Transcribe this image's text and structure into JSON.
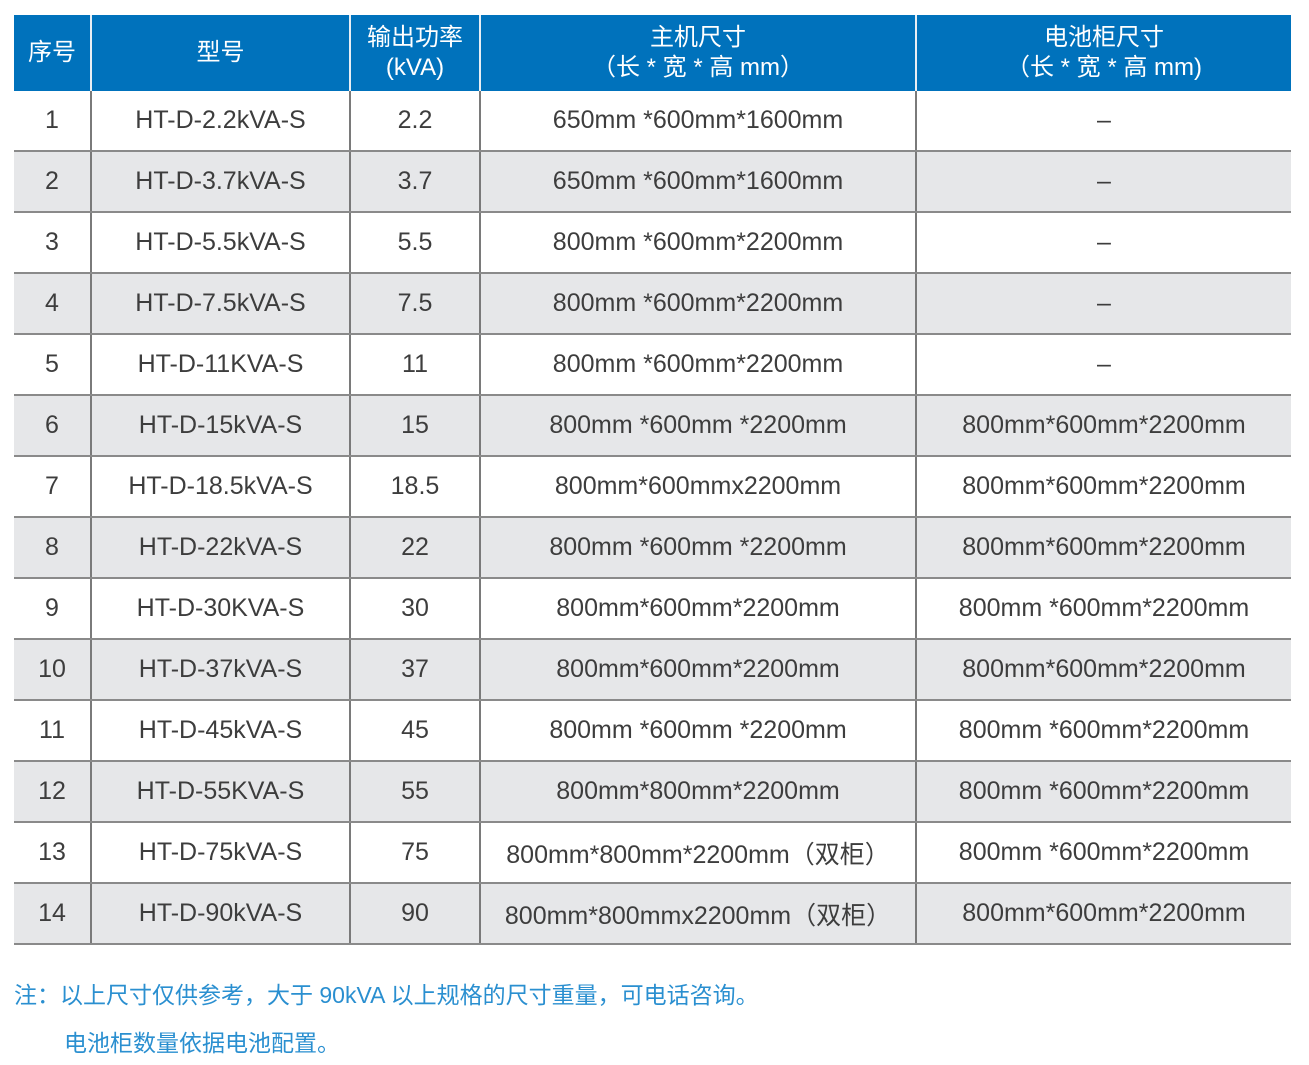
{
  "colors": {
    "header_bg": "#0072bc",
    "alt_row": "#e6e7e9",
    "note": "#2a8fd0"
  },
  "headers": [
    {
      "line1": "序号",
      "line2": ""
    },
    {
      "line1": "型号",
      "line2": ""
    },
    {
      "line1": "输出功率",
      "line2": "(kVA)"
    },
    {
      "line1": "主机尺寸",
      "line2": "（长 * 宽 * 高 mm）"
    },
    {
      "line1": "电池柜尺寸",
      "line2": "（长 * 宽 * 高 mm)"
    }
  ],
  "rows": [
    [
      "1",
      "HT-D-2.2kVA-S",
      "2.2",
      "650mm *600mm*1600mm",
      "–"
    ],
    [
      "2",
      "HT-D-3.7kVA-S",
      "3.7",
      "650mm *600mm*1600mm",
      "–"
    ],
    [
      "3",
      "HT-D-5.5kVA-S",
      "5.5",
      "800mm *600mm*2200mm",
      "–"
    ],
    [
      "4",
      "HT-D-7.5kVA-S",
      "7.5",
      "800mm *600mm*2200mm",
      "–"
    ],
    [
      "5",
      "HT-D-11KVA-S",
      "11",
      "800mm *600mm*2200mm",
      "–"
    ],
    [
      "6",
      "HT-D-15kVA-S",
      "15",
      "800mm *600mm *2200mm",
      "800mm*600mm*2200mm"
    ],
    [
      "7",
      "HT-D-18.5kVA-S",
      "18.5",
      "800mm*600mmx2200mm",
      "800mm*600mm*2200mm"
    ],
    [
      "8",
      "HT-D-22kVA-S",
      "22",
      "800mm *600mm *2200mm",
      "800mm*600mm*2200mm"
    ],
    [
      "9",
      "HT-D-30KVA-S",
      "30",
      "800mm*600mm*2200mm",
      "800mm *600mm*2200mm"
    ],
    [
      "10",
      "HT-D-37kVA-S",
      "37",
      "800mm*600mm*2200mm",
      "800mm*600mm*2200mm"
    ],
    [
      "11",
      "HT-D-45kVA-S",
      "45",
      "800mm *600mm *2200mm",
      "800mm *600mm*2200mm"
    ],
    [
      "12",
      "HT-D-55KVA-S",
      "55",
      "800mm*800mm*2200mm",
      "800mm *600mm*2200mm"
    ],
    [
      "13",
      "HT-D-75kVA-S",
      "75",
      "800mm*800mm*2200mm（双柜）",
      "800mm *600mm*2200mm"
    ],
    [
      "14",
      "HT-D-90kVA-S",
      "90",
      "800mm*800mmx2200mm（双柜）",
      "800mm*600mm*2200mm"
    ]
  ],
  "notes": {
    "line1": "注：以上尺寸仅供参考，大于 90kVA 以上规格的尺寸重量，可电话咨询。",
    "line2": "电池柜数量依据电池配置。"
  }
}
